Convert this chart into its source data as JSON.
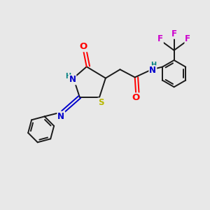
{
  "bg_color": "#e8e8e8",
  "bond_color": "#1a1a1a",
  "atom_colors": {
    "O": "#ff0000",
    "N": "#0000cc",
    "S": "#b8b800",
    "H": "#008080",
    "F": "#cc00cc",
    "C": "#1a1a1a"
  },
  "line_width": 1.4,
  "font_size_main": 8.5,
  "font_size_small": 7.0,
  "xlim": [
    0,
    10
  ],
  "ylim": [
    0,
    10
  ]
}
